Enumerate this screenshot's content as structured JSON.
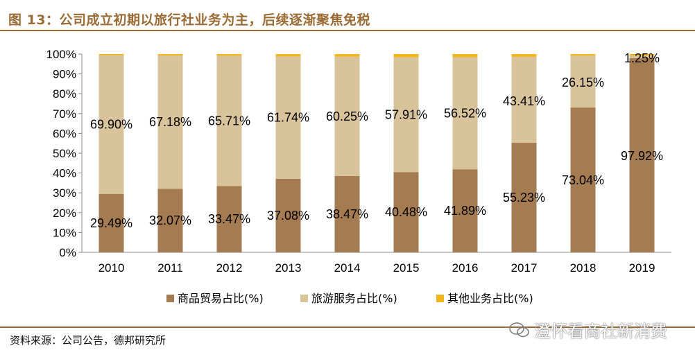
{
  "title": "图 13：公司成立初期以旅行社业务为主，后续逐渐聚焦免税",
  "source": "资料来源：公司公告，德邦研究所",
  "watermark": "澄怀看商社新消费",
  "colors": {
    "goods": "#a57c52",
    "travel": "#d9c39b",
    "other": "#f2b51c",
    "accent": "#9a6b35"
  },
  "chart_data": {
    "type": "bar",
    "stacked": true,
    "categories": [
      "2010",
      "2011",
      "2012",
      "2013",
      "2014",
      "2015",
      "2016",
      "2017",
      "2018",
      "2019"
    ],
    "series": [
      {
        "name": "商品贸易占比(%)",
        "values": [
          29.49,
          32.07,
          33.47,
          37.08,
          38.47,
          40.48,
          41.89,
          55.23,
          73.04,
          97.92
        ],
        "labels": [
          "29.49%",
          "32.07%",
          "33.47%",
          "37.08%",
          "38.47%",
          "40.48%",
          "41.89%",
          "55.23%",
          "73.04%",
          "97.92%"
        ]
      },
      {
        "name": "旅游服务占比(%)",
        "values": [
          69.9,
          67.18,
          65.71,
          61.74,
          60.25,
          57.91,
          56.52,
          43.41,
          26.15,
          1.25
        ],
        "labels": [
          "69.90%",
          "67.18%",
          "65.71%",
          "61.74%",
          "60.25%",
          "57.91%",
          "56.52%",
          "43.41%",
          "26.15%",
          "1.25%"
        ]
      },
      {
        "name": "其他业务占比(%)",
        "values": [
          0.61,
          0.75,
          0.82,
          1.18,
          1.28,
          1.61,
          1.59,
          1.36,
          0.81,
          0.83
        ]
      }
    ],
    "yticks": [
      "0%",
      "10%",
      "20%",
      "30%",
      "40%",
      "50%",
      "60%",
      "70%",
      "80%",
      "90%",
      "100%"
    ],
    "ylim": [
      0,
      100
    ],
    "legend": "bottom"
  }
}
